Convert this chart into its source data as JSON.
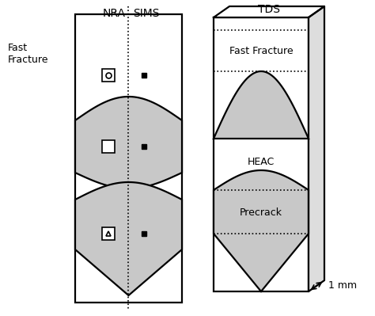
{
  "bg_color": "#ffffff",
  "gray_fill": "#c8c8c8",
  "black": "#000000",
  "left_panel": {
    "nra_label": "NRA",
    "sims_label": "SIMS",
    "fast_fracture_label": "Fast\nFracture"
  },
  "right_panel": {
    "tds_label": "TDS",
    "labels": [
      "Fast Fracture",
      "HEAC",
      "Precrack"
    ],
    "depth_label": "1 mm"
  },
  "lw": 1.6
}
